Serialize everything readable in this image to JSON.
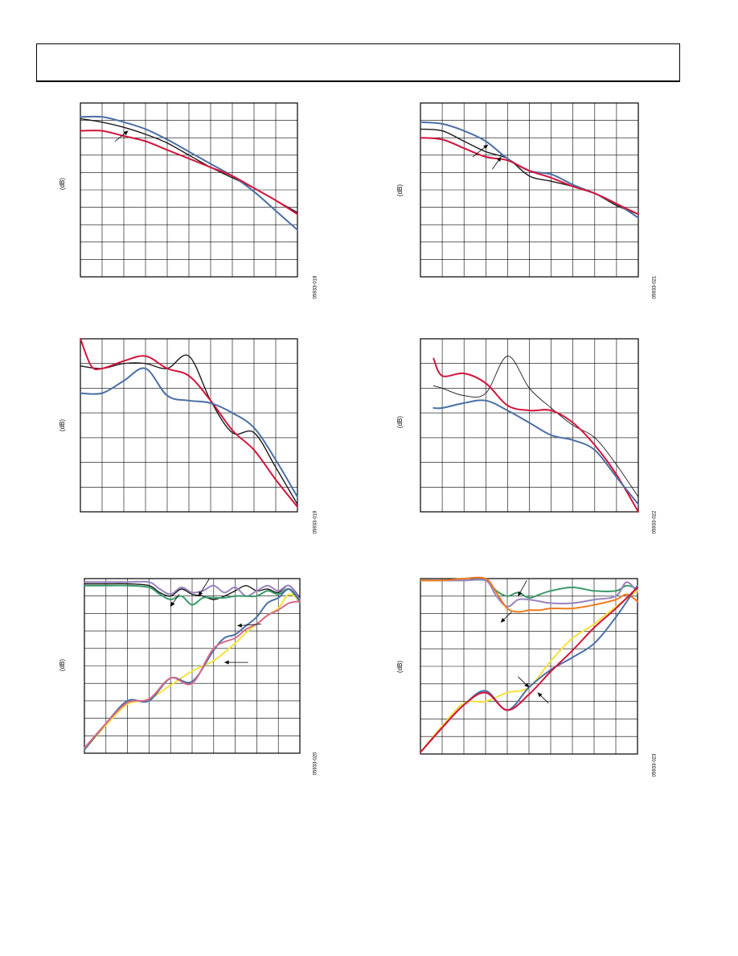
{
  "header": {
    "title": ""
  },
  "colors": {
    "black": "#1a1a1a",
    "red": "#d4143c",
    "blue": "#4a6fa5",
    "green": "#3a9a6a",
    "purple": "#9a82bf",
    "yellow": "#f5e23a",
    "orange": "#f07a1e",
    "pink": "#d96a8a",
    "grid": "#000000"
  },
  "charts": [
    {
      "id": "fig-1",
      "ylabel": "(dB)",
      "figure_id": "05933-018",
      "chart_data": {
        "type": "line",
        "xlabel": "",
        "ylabel": "(dB)",
        "grid": true,
        "xlim": [
          0,
          10
        ],
        "ylim": [
          0,
          10
        ],
        "series": [
          {
            "color": "black",
            "x": [
              0,
              1,
              2,
              3,
              4,
              5,
              6,
              7,
              8,
              9,
              10
            ],
            "y": [
              9.1,
              8.9,
              8.6,
              8.2,
              7.7,
              7.0,
              6.3,
              5.7,
              5.1,
              4.4,
              3.7
            ]
          },
          {
            "color": "blue",
            "x": [
              0,
              1,
              2,
              3,
              4,
              5,
              6,
              7,
              8,
              9,
              10
            ],
            "y": [
              9.2,
              9.2,
              8.9,
              8.5,
              7.9,
              7.2,
              6.5,
              5.8,
              4.9,
              3.8,
              2.7
            ]
          },
          {
            "color": "red",
            "x": [
              0,
              1,
              2,
              3,
              4,
              5,
              6,
              7,
              8,
              9,
              10
            ],
            "y": [
              8.4,
              8.4,
              8.1,
              7.8,
              7.3,
              6.8,
              6.3,
              5.8,
              5.1,
              4.4,
              3.6
            ]
          }
        ],
        "annotations": [
          {
            "type": "arrow",
            "from": [
              1.6,
              7.8
            ],
            "to": [
              2.2,
              8.4
            ]
          }
        ]
      }
    },
    {
      "id": "fig-2",
      "ylabel": "(dB)",
      "figure_id": "05933-021",
      "chart_data": {
        "type": "line",
        "xlabel": "",
        "ylabel": "(dB)",
        "grid": true,
        "xlim": [
          0,
          10
        ],
        "ylim": [
          0,
          10
        ],
        "series": [
          {
            "color": "black",
            "x": [
              0,
              1,
              2,
              3,
              4,
              5,
              6,
              7,
              8,
              9,
              10
            ],
            "y": [
              8.5,
              8.4,
              7.8,
              7.2,
              6.8,
              5.8,
              5.5,
              5.2,
              4.8,
              4.1,
              3.6
            ]
          },
          {
            "color": "blue",
            "x": [
              0,
              1,
              2,
              3,
              4,
              5,
              6,
              7,
              8,
              9,
              10
            ],
            "y": [
              8.9,
              8.8,
              8.4,
              7.8,
              6.8,
              6.1,
              5.9,
              5.3,
              4.8,
              4.2,
              3.4
            ]
          },
          {
            "color": "red",
            "x": [
              0,
              1,
              2,
              3,
              4,
              5,
              6,
              7,
              8,
              9,
              10
            ],
            "y": [
              8.0,
              7.9,
              7.4,
              6.9,
              6.7,
              6.1,
              5.7,
              5.2,
              4.8,
              4.2,
              3.6
            ]
          }
        ],
        "annotations": [
          {
            "type": "arrow",
            "from": [
              2.4,
              6.9
            ],
            "to": [
              3.1,
              7.6
            ]
          },
          {
            "type": "arrow",
            "from": [
              3.3,
              6.2
            ],
            "to": [
              3.7,
              6.9
            ]
          }
        ]
      }
    },
    {
      "id": "fig-3",
      "ylabel": "(dB)",
      "figure_id": "05933-019",
      "chart_data": {
        "type": "line",
        "xlabel": "",
        "ylabel": "(dB)",
        "grid": true,
        "xlim": [
          0,
          10
        ],
        "ylim": [
          0,
          7
        ],
        "series": [
          {
            "color": "black",
            "x": [
              0,
              1,
              2,
              3,
              4,
              5,
              6,
              7,
              8,
              9,
              10
            ],
            "y": [
              5.9,
              5.8,
              6.0,
              6.0,
              5.8,
              6.3,
              4.5,
              3.2,
              3.2,
              1.8,
              0.3
            ]
          },
          {
            "color": "red",
            "x": [
              0,
              0.5,
              1,
              2,
              3,
              4,
              5,
              6,
              7,
              8,
              9,
              10
            ],
            "y": [
              7.0,
              5.9,
              5.8,
              6.1,
              6.3,
              5.8,
              5.5,
              4.5,
              3.3,
              2.5,
              1.3,
              0.2
            ]
          },
          {
            "color": "blue",
            "x": [
              0,
              1,
              2,
              3,
              4,
              5,
              6,
              7,
              8,
              9,
              10
            ],
            "y": [
              4.8,
              4.8,
              5.3,
              5.8,
              4.7,
              4.5,
              4.4,
              4.0,
              3.4,
              2.1,
              0.6
            ]
          }
        ]
      }
    },
    {
      "id": "fig-4",
      "ylabel": "(dB)",
      "figure_id": "05933-022",
      "chart_data": {
        "type": "line",
        "xlabel": "",
        "ylabel": "(dB)",
        "grid": true,
        "xlim": [
          0,
          10
        ],
        "ylim": [
          0,
          7
        ],
        "series": [
          {
            "color": "black",
            "x": [
              0.6,
              1,
              2,
              3,
              4,
              5,
              6,
              7,
              8,
              9,
              10
            ],
            "y": [
              5.1,
              5.0,
              4.7,
              4.8,
              6.3,
              5.0,
              4.2,
              3.5,
              3.0,
              1.9,
              0.6
            ]
          },
          {
            "color": "red",
            "x": [
              0.6,
              1,
              2,
              3,
              4,
              5,
              6,
              7,
              8,
              9,
              10
            ],
            "y": [
              6.2,
              5.5,
              5.6,
              5.2,
              4.3,
              4.1,
              4.1,
              3.6,
              2.7,
              1.5,
              0.0
            ]
          },
          {
            "color": "blue",
            "x": [
              0.6,
              1,
              2,
              3,
              4,
              5,
              6,
              7,
              8,
              9,
              10
            ],
            "y": [
              4.2,
              4.2,
              4.4,
              4.5,
              4.1,
              3.6,
              3.1,
              2.9,
              2.5,
              1.4,
              0.3
            ]
          }
        ]
      }
    },
    {
      "id": "fig-5",
      "ylabel": "(dB)",
      "figure_id": "05933-020",
      "chart_data": {
        "type": "line",
        "xlabel": "",
        "ylabel": "(dB)",
        "grid": true,
        "xlim": [
          0,
          10
        ],
        "ylim": [
          0,
          10
        ],
        "series": [
          {
            "color": "black",
            "x": [
              0,
              1,
              2,
              3,
              3.5,
              4,
              4.5,
              5,
              5.5,
              6,
              6.5,
              7,
              7.5,
              8,
              8.5,
              9,
              9.5,
              10
            ],
            "y": [
              9.7,
              9.7,
              9.7,
              9.6,
              9.2,
              9.0,
              9.4,
              9.1,
              9.0,
              8.8,
              9.0,
              9.3,
              9.6,
              9.3,
              9.4,
              9.2,
              9.6,
              8.9
            ]
          },
          {
            "color": "purple",
            "x": [
              0,
              1,
              2,
              3,
              3.5,
              4,
              4.5,
              5,
              5.5,
              6,
              6.5,
              7,
              7.5,
              8,
              8.5,
              9,
              9.5,
              10
            ],
            "y": [
              9.8,
              9.8,
              9.8,
              9.8,
              9.4,
              9.1,
              9.5,
              9.2,
              9.3,
              9.6,
              9.2,
              9.5,
              9.0,
              9.3,
              9.6,
              9.3,
              9.6,
              8.8
            ]
          },
          {
            "color": "green",
            "x": [
              0,
              1,
              2,
              3,
              3.5,
              4,
              4.5,
              5,
              5.5,
              6,
              6.5,
              7,
              7.5,
              8,
              8.5,
              9,
              9.5,
              10
            ],
            "y": [
              9.6,
              9.6,
              9.6,
              9.5,
              9.1,
              8.8,
              9.0,
              8.5,
              8.9,
              8.9,
              8.9,
              9.0,
              9.0,
              9.0,
              9.3,
              9.1,
              9.4,
              8.6
            ]
          },
          {
            "color": "yellow",
            "x": [
              0,
              1,
              2,
              3,
              4,
              5,
              6,
              7,
              7.5,
              8,
              8.5,
              9,
              9.5,
              10
            ],
            "y": [
              0.2,
              1.6,
              2.8,
              3.1,
              3.9,
              4.7,
              5.3,
              6.3,
              6.9,
              7.4,
              7.9,
              8.3,
              9.1,
              8.7
            ]
          },
          {
            "color": "blue",
            "x": [
              0,
              1,
              2,
              3,
              4,
              5,
              6,
              6.5,
              7,
              7.5,
              8,
              8.5,
              9,
              9.5,
              10
            ],
            "y": [
              0.2,
              1.7,
              3.0,
              3.0,
              4.3,
              4.1,
              5.9,
              6.6,
              6.8,
              7.3,
              7.8,
              8.6,
              8.9,
              9.4,
              8.7
            ]
          },
          {
            "color": "pink",
            "x": [
              0,
              1,
              2,
              3,
              4,
              5,
              6,
              7,
              7.5,
              8,
              8.5,
              9,
              9.5,
              10
            ],
            "y": [
              0.3,
              1.7,
              2.9,
              3.1,
              4.3,
              4.0,
              6.0,
              6.6,
              7.1,
              7.4,
              7.9,
              8.2,
              8.6,
              8.7
            ]
          }
        ],
        "annotations": [
          {
            "type": "arrow",
            "from": [
              5.8,
              10.0
            ],
            "to": [
              5.3,
              9.0
            ]
          },
          {
            "type": "arrow",
            "from": [
              4.4,
              9.1
            ],
            "to": [
              4.0,
              8.4
            ]
          },
          {
            "type": "arrow",
            "from": [
              8.2,
              7.4
            ],
            "to": [
              7.1,
              7.3
            ]
          },
          {
            "type": "arrow",
            "from": [
              7.6,
              5.2
            ],
            "to": [
              6.5,
              5.2
            ]
          }
        ]
      }
    },
    {
      "id": "fig-6",
      "ylabel": "(dB)",
      "figure_id": "05933-023",
      "chart_data": {
        "type": "line",
        "xlabel": "",
        "ylabel": "(dB)",
        "grid": true,
        "xlim": [
          0,
          10
        ],
        "ylim": [
          0,
          10
        ],
        "series": [
          {
            "color": "green",
            "x": [
              0,
              1,
              2,
              3,
              3.5,
              4,
              4.5,
              5,
              5.5,
              6,
              7,
              8,
              9,
              9.5,
              10
            ],
            "y": [
              9.9,
              9.9,
              9.9,
              9.9,
              9.3,
              9.0,
              9.2,
              8.9,
              9.1,
              9.3,
              9.5,
              9.3,
              9.3,
              9.6,
              9.4
            ]
          },
          {
            "color": "purple",
            "x": [
              0,
              1,
              2,
              3,
              3.5,
              4,
              4.5,
              5,
              5.5,
              6,
              7,
              8,
              9,
              9.5,
              10
            ],
            "y": [
              9.9,
              9.9,
              9.9,
              9.9,
              9.0,
              8.4,
              8.8,
              8.8,
              8.7,
              8.6,
              8.6,
              8.8,
              9.0,
              9.8,
              9.2
            ]
          },
          {
            "color": "orange",
            "x": [
              0,
              1,
              2,
              3,
              3.5,
              4,
              4.5,
              5,
              5.5,
              6,
              7,
              8,
              9,
              9.5,
              10
            ],
            "y": [
              9.9,
              9.9,
              10.0,
              10.0,
              9.2,
              8.3,
              8.1,
              8.2,
              8.2,
              8.3,
              8.3,
              8.5,
              8.8,
              9.1,
              8.7
            ]
          },
          {
            "color": "yellow",
            "x": [
              0,
              1,
              2,
              3,
              4,
              5,
              6,
              7,
              8,
              9,
              10
            ],
            "y": [
              0.1,
              1.6,
              2.9,
              3.0,
              3.5,
              3.8,
              5.3,
              6.6,
              7.4,
              8.4,
              9.3
            ]
          },
          {
            "color": "blue",
            "x": [
              0,
              1,
              2,
              3,
              4,
              5,
              6,
              7,
              8,
              9,
              10
            ],
            "y": [
              0.1,
              1.5,
              2.8,
              3.6,
              2.5,
              3.8,
              4.8,
              5.5,
              6.3,
              7.8,
              9.6
            ]
          },
          {
            "color": "red",
            "x": [
              0,
              1,
              2,
              3,
              4,
              5,
              6,
              7,
              8,
              9,
              10
            ],
            "y": [
              0.1,
              1.5,
              2.8,
              3.5,
              2.5,
              3.4,
              4.7,
              5.9,
              7.2,
              8.3,
              9.5
            ]
          }
        ],
        "annotations": [
          {
            "type": "arrow",
            "from": [
              4.9,
              9.9
            ],
            "to": [
              4.5,
              9.0
            ]
          },
          {
            "type": "arrow",
            "from": [
              4.2,
              8.1
            ],
            "to": [
              3.7,
              7.5
            ]
          },
          {
            "type": "arrow",
            "from": [
              4.5,
              4.4
            ],
            "to": [
              5.0,
              3.8
            ]
          },
          {
            "type": "arrow",
            "from": [
              5.9,
              2.9
            ],
            "to": [
              5.4,
              3.5
            ]
          }
        ]
      }
    }
  ]
}
